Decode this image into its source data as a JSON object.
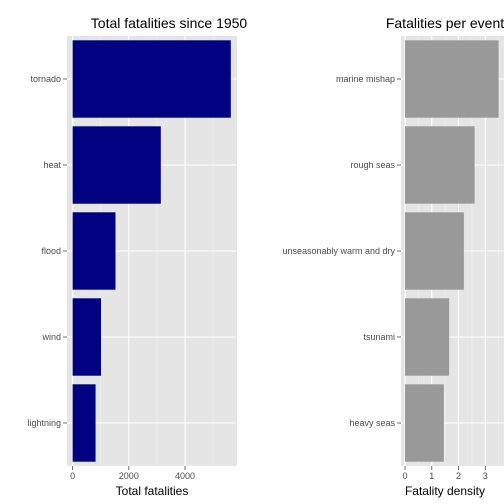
{
  "chart_data": [
    {
      "type": "bar",
      "orientation": "horizontal",
      "title": "Total fatalities since 1950",
      "xlabel": "Total fatalities",
      "ylabel": "",
      "categories": [
        "tornado",
        "heat",
        "flood",
        "wind",
        "lightning"
      ],
      "values": [
        5630,
        3138,
        1525,
        1010,
        816
      ],
      "xlim": [
        -200,
        5850
      ],
      "xticks": [
        0,
        2000,
        4000
      ],
      "bar_color": "#000080",
      "panel_color": "#e5e5e5",
      "grid": true
    },
    {
      "type": "bar",
      "orientation": "horizontal",
      "title": "Fatalities per event",
      "xlabel": "Fatality density",
      "ylabel": "",
      "categories": [
        "marine mishap",
        "rough seas",
        "unseasonably warm and dry",
        "tsunami",
        "heavy seas"
      ],
      "values": [
        3.5,
        2.6,
        2.2,
        1.65,
        1.45
      ],
      "xlim": [
        -0.15,
        3.7
      ],
      "xticks": [
        0,
        1,
        2,
        3
      ],
      "bar_color": "#999999",
      "panel_color": "#e5e5e5",
      "grid": true
    }
  ]
}
